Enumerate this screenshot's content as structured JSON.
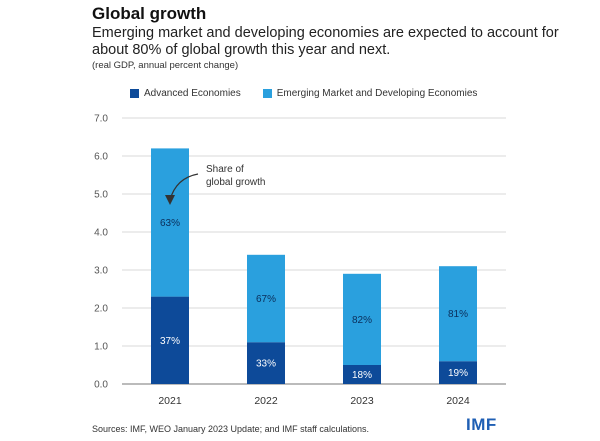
{
  "title": "Global growth",
  "subtitle": "Emerging market and developing economies are expected to account for about 80% of global growth this year and next.",
  "note": "(real GDP, annual percent change)",
  "legend": {
    "advanced": "Advanced Economies",
    "emerging": "Emerging Market and Developing Economies"
  },
  "annotation": {
    "line1": "Share of",
    "line2": "global growth"
  },
  "source": "Sources: IMF, WEO January 2023 Update; and IMF staff calculations.",
  "logo": "IMF",
  "colors": {
    "advanced": "#0d4a99",
    "emerging": "#2aa0de",
    "grid": "#d9d9d9",
    "axis": "#555555"
  },
  "chart_data": {
    "type": "bar",
    "stacked": true,
    "categories": [
      "2021",
      "2022",
      "2023",
      "2024"
    ],
    "series": [
      {
        "name": "Advanced Economies",
        "values": [
          2.3,
          1.1,
          0.5,
          0.6
        ],
        "labels": [
          "37%",
          "33%",
          "18%",
          "19%"
        ]
      },
      {
        "name": "Emerging Market and Developing Economies",
        "values": [
          3.9,
          2.3,
          2.4,
          2.5
        ],
        "labels": [
          "63%",
          "67%",
          "82%",
          "81%"
        ]
      }
    ],
    "totals": [
      6.2,
      3.4,
      2.9,
      3.1
    ],
    "yticks": [
      "0.0",
      "1.0",
      "2.0",
      "3.0",
      "4.0",
      "5.0",
      "6.0",
      "7.0"
    ],
    "ylim": [
      0,
      7
    ],
    "grid": true,
    "legend_position": "top-left"
  }
}
